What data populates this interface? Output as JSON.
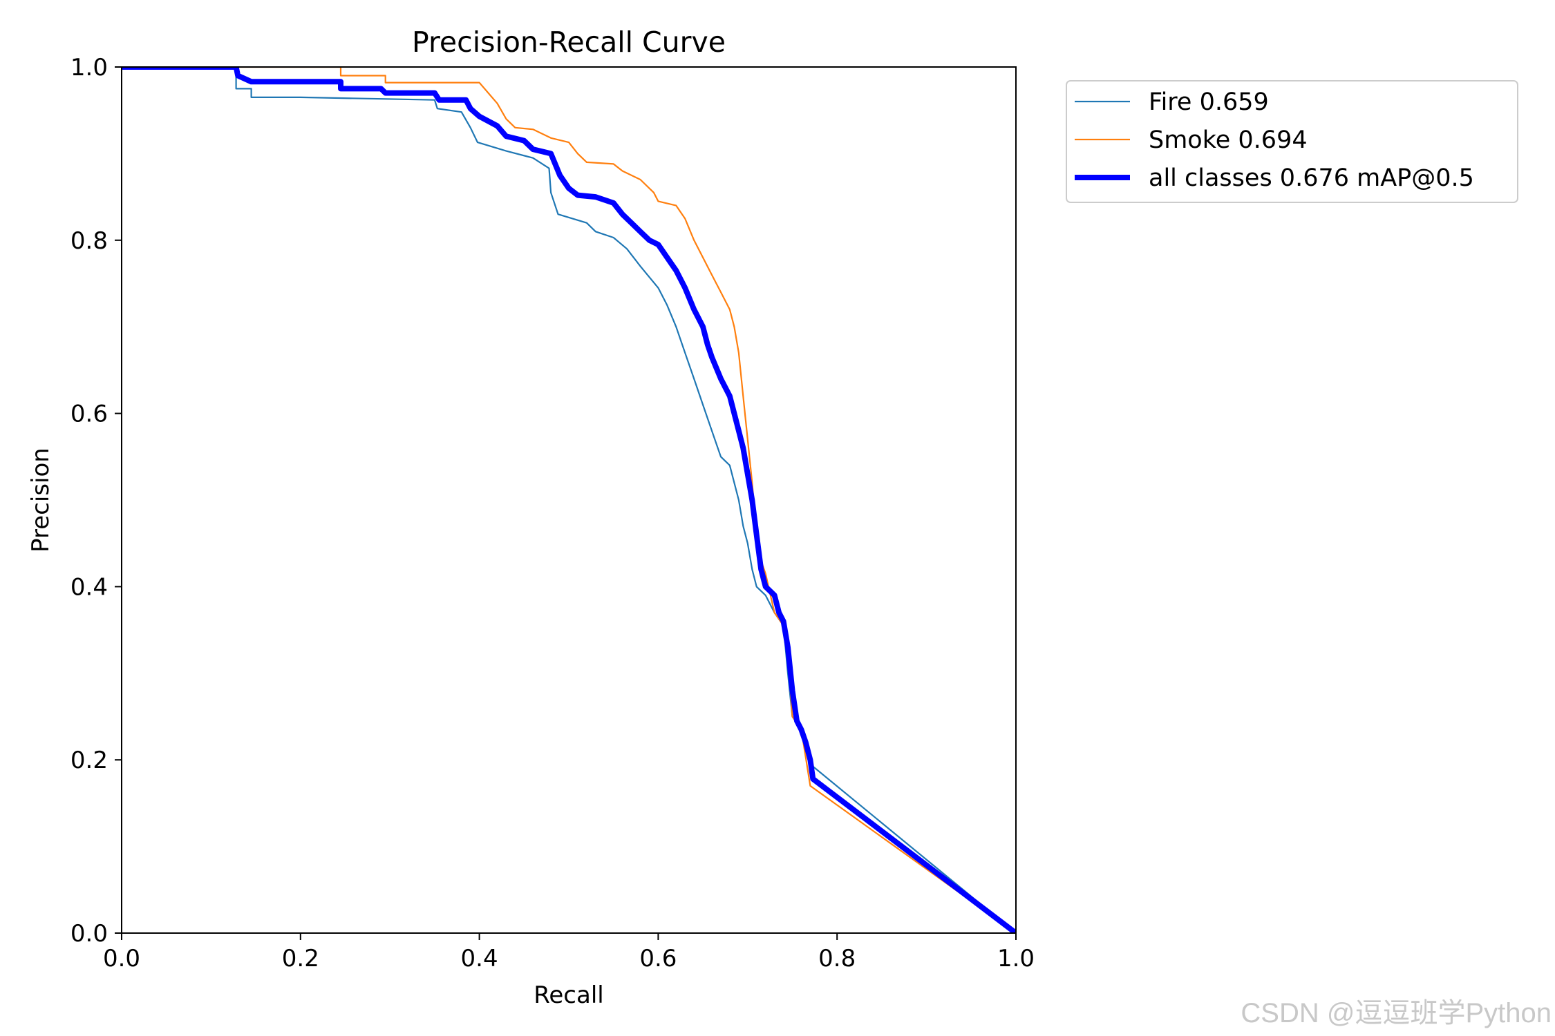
{
  "chart_data": {
    "type": "line",
    "title": "Precision-Recall Curve",
    "xlabel": "Recall",
    "ylabel": "Precision",
    "xlim": [
      0.0,
      1.0
    ],
    "ylim": [
      0.0,
      1.0
    ],
    "x_ticks": [
      "0.0",
      "0.2",
      "0.4",
      "0.6",
      "0.8",
      "1.0"
    ],
    "y_ticks": [
      "0.0",
      "0.2",
      "0.4",
      "0.6",
      "0.8",
      "1.0"
    ],
    "grid": false,
    "legend_position": "outside-top-right",
    "series": [
      {
        "name": "Fire 0.659",
        "color": "#1f77b4",
        "width": "thin",
        "points": [
          [
            0,
            1.0
          ],
          [
            0.128,
            1.0
          ],
          [
            0.128,
            0.975
          ],
          [
            0.145,
            0.975
          ],
          [
            0.145,
            0.965
          ],
          [
            0.2,
            0.965
          ],
          [
            0.35,
            0.962
          ],
          [
            0.353,
            0.952
          ],
          [
            0.38,
            0.948
          ],
          [
            0.39,
            0.93
          ],
          [
            0.398,
            0.913
          ],
          [
            0.43,
            0.903
          ],
          [
            0.46,
            0.895
          ],
          [
            0.478,
            0.883
          ],
          [
            0.48,
            0.855
          ],
          [
            0.488,
            0.83
          ],
          [
            0.52,
            0.82
          ],
          [
            0.53,
            0.81
          ],
          [
            0.55,
            0.803
          ],
          [
            0.565,
            0.79
          ],
          [
            0.58,
            0.77
          ],
          [
            0.6,
            0.745
          ],
          [
            0.61,
            0.725
          ],
          [
            0.62,
            0.7
          ],
          [
            0.63,
            0.67
          ],
          [
            0.64,
            0.64
          ],
          [
            0.65,
            0.61
          ],
          [
            0.66,
            0.58
          ],
          [
            0.67,
            0.55
          ],
          [
            0.68,
            0.54
          ],
          [
            0.69,
            0.5
          ],
          [
            0.695,
            0.47
          ],
          [
            0.7,
            0.45
          ],
          [
            0.705,
            0.42
          ],
          [
            0.71,
            0.4
          ],
          [
            0.72,
            0.39
          ],
          [
            0.73,
            0.37
          ],
          [
            0.74,
            0.355
          ],
          [
            0.745,
            0.3
          ],
          [
            0.75,
            0.25
          ],
          [
            0.76,
            0.235
          ],
          [
            0.77,
            0.195
          ],
          [
            1.0,
            0.0
          ]
        ]
      },
      {
        "name": "Smoke 0.694",
        "color": "#ff7f0e",
        "width": "thin",
        "points": [
          [
            0,
            1.0
          ],
          [
            0.245,
            1.0
          ],
          [
            0.245,
            0.99
          ],
          [
            0.295,
            0.99
          ],
          [
            0.295,
            0.982
          ],
          [
            0.4,
            0.982
          ],
          [
            0.41,
            0.97
          ],
          [
            0.42,
            0.958
          ],
          [
            0.43,
            0.94
          ],
          [
            0.44,
            0.93
          ],
          [
            0.46,
            0.928
          ],
          [
            0.48,
            0.918
          ],
          [
            0.5,
            0.913
          ],
          [
            0.51,
            0.9
          ],
          [
            0.52,
            0.89
          ],
          [
            0.55,
            0.888
          ],
          [
            0.56,
            0.88
          ],
          [
            0.58,
            0.87
          ],
          [
            0.595,
            0.855
          ],
          [
            0.6,
            0.845
          ],
          [
            0.62,
            0.84
          ],
          [
            0.63,
            0.825
          ],
          [
            0.64,
            0.8
          ],
          [
            0.65,
            0.78
          ],
          [
            0.66,
            0.76
          ],
          [
            0.67,
            0.74
          ],
          [
            0.68,
            0.72
          ],
          [
            0.685,
            0.7
          ],
          [
            0.69,
            0.67
          ],
          [
            0.695,
            0.62
          ],
          [
            0.7,
            0.57
          ],
          [
            0.705,
            0.52
          ],
          [
            0.71,
            0.46
          ],
          [
            0.715,
            0.43
          ],
          [
            0.72,
            0.415
          ],
          [
            0.73,
            0.37
          ],
          [
            0.74,
            0.355
          ],
          [
            0.745,
            0.32
          ],
          [
            0.75,
            0.25
          ],
          [
            0.76,
            0.235
          ],
          [
            0.77,
            0.17
          ],
          [
            1.0,
            0.0
          ]
        ]
      },
      {
        "name": "all classes 0.676 mAP@0.5",
        "color": "#0000ff",
        "width": "thick",
        "points": [
          [
            0,
            1.0
          ],
          [
            0.128,
            1.0
          ],
          [
            0.13,
            0.99
          ],
          [
            0.145,
            0.983
          ],
          [
            0.245,
            0.983
          ],
          [
            0.245,
            0.975
          ],
          [
            0.29,
            0.975
          ],
          [
            0.295,
            0.97
          ],
          [
            0.35,
            0.97
          ],
          [
            0.355,
            0.962
          ],
          [
            0.385,
            0.962
          ],
          [
            0.39,
            0.952
          ],
          [
            0.4,
            0.943
          ],
          [
            0.42,
            0.932
          ],
          [
            0.43,
            0.92
          ],
          [
            0.45,
            0.915
          ],
          [
            0.46,
            0.905
          ],
          [
            0.48,
            0.9
          ],
          [
            0.49,
            0.875
          ],
          [
            0.5,
            0.86
          ],
          [
            0.51,
            0.852
          ],
          [
            0.53,
            0.85
          ],
          [
            0.55,
            0.843
          ],
          [
            0.56,
            0.83
          ],
          [
            0.57,
            0.82
          ],
          [
            0.58,
            0.81
          ],
          [
            0.59,
            0.8
          ],
          [
            0.6,
            0.795
          ],
          [
            0.61,
            0.78
          ],
          [
            0.62,
            0.765
          ],
          [
            0.63,
            0.745
          ],
          [
            0.64,
            0.72
          ],
          [
            0.65,
            0.7
          ],
          [
            0.655,
            0.68
          ],
          [
            0.66,
            0.665
          ],
          [
            0.67,
            0.64
          ],
          [
            0.68,
            0.62
          ],
          [
            0.685,
            0.6
          ],
          [
            0.69,
            0.58
          ],
          [
            0.695,
            0.56
          ],
          [
            0.7,
            0.53
          ],
          [
            0.705,
            0.5
          ],
          [
            0.71,
            0.46
          ],
          [
            0.715,
            0.42
          ],
          [
            0.72,
            0.4
          ],
          [
            0.73,
            0.39
          ],
          [
            0.735,
            0.37
          ],
          [
            0.74,
            0.36
          ],
          [
            0.745,
            0.33
          ],
          [
            0.75,
            0.28
          ],
          [
            0.755,
            0.245
          ],
          [
            0.76,
            0.235
          ],
          [
            0.765,
            0.22
          ],
          [
            0.77,
            0.2
          ],
          [
            0.773,
            0.178
          ],
          [
            1.0,
            0.0
          ]
        ]
      }
    ]
  },
  "watermark": "CSDN @逗逗班学Python"
}
